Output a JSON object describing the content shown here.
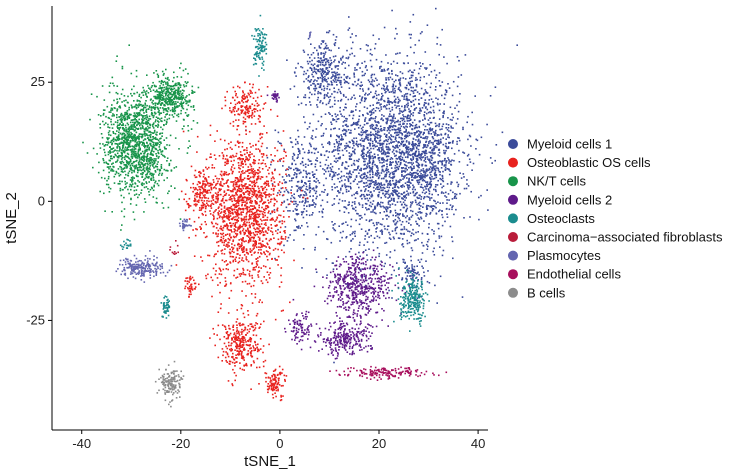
{
  "chart_data": {
    "type": "scatter",
    "title": "",
    "xlabel": "tSNE_1",
    "ylabel": "tSNE_2",
    "xlim": [
      -46,
      42
    ],
    "ylim": [
      -48,
      41
    ],
    "x_ticks": [
      -40,
      -20,
      0,
      20,
      40
    ],
    "y_ticks": [
      -25,
      0,
      25
    ],
    "grid": false,
    "legend_position": "right",
    "series": [
      {
        "name": "Myeloid cells 1",
        "color": "#3b4b9a",
        "clusters": [
          {
            "center": [
              22,
              10
            ],
            "spread": [
              13,
              19
            ],
            "count": 2600
          },
          {
            "center": [
              9,
              27
            ],
            "spread": [
              5,
              6
            ],
            "count": 300
          },
          {
            "center": [
              4,
              3
            ],
            "spread": [
              4,
              9
            ],
            "count": 250
          },
          {
            "center": [
              30,
              8
            ],
            "spread": [
              5,
              10
            ],
            "count": 300
          },
          {
            "center": [
              27,
              -15
            ],
            "spread": [
              2,
              3
            ],
            "count": 60
          }
        ]
      },
      {
        "name": "Osteoblastic OS cells",
        "color": "#e8221e",
        "clusters": [
          {
            "center": [
              -7,
              -2
            ],
            "spread": [
              7,
              14
            ],
            "count": 1500
          },
          {
            "center": [
              -7,
              20
            ],
            "spread": [
              3,
              4
            ],
            "count": 150
          },
          {
            "center": [
              -16,
              2
            ],
            "spread": [
              2.5,
              4
            ],
            "count": 150
          },
          {
            "center": [
              -8,
              -30
            ],
            "spread": [
              4,
              5
            ],
            "count": 300
          },
          {
            "center": [
              -1,
              -38
            ],
            "spread": [
              2,
              3
            ],
            "count": 100
          },
          {
            "center": [
              -18,
              -18
            ],
            "spread": [
              1,
              2
            ],
            "count": 40
          }
        ]
      },
      {
        "name": "NK/T cells",
        "color": "#18944a",
        "clusters": [
          {
            "center": [
              -29,
              12
            ],
            "spread": [
              6,
              10
            ],
            "count": 1300
          },
          {
            "center": [
              -22,
              22
            ],
            "spread": [
              4,
              4
            ],
            "count": 400
          }
        ]
      },
      {
        "name": "Myeloid cells 2",
        "color": "#5e1a8a",
        "clusters": [
          {
            "center": [
              16,
              -18
            ],
            "spread": [
              6,
              6
            ],
            "count": 500
          },
          {
            "center": [
              13,
              -29
            ],
            "spread": [
              5,
              3
            ],
            "count": 250
          },
          {
            "center": [
              4,
              -27
            ],
            "spread": [
              2,
              3
            ],
            "count": 80
          },
          {
            "center": [
              -1,
              22
            ],
            "spread": [
              1,
              1
            ],
            "count": 30
          }
        ]
      },
      {
        "name": "Osteoclasts",
        "color": "#1b8c8e",
        "clusters": [
          {
            "center": [
              27,
              -21
            ],
            "spread": [
              2.5,
              4
            ],
            "count": 250
          },
          {
            "center": [
              -4,
              33
            ],
            "spread": [
              1.2,
              4
            ],
            "count": 100
          },
          {
            "center": [
              -23,
              -22
            ],
            "spread": [
              1,
              2
            ],
            "count": 50
          },
          {
            "center": [
              -31,
              -9
            ],
            "spread": [
              1,
              1
            ],
            "count": 20
          }
        ]
      },
      {
        "name": "Carcinoma−associated fibroblasts",
        "color": "#b91c3a",
        "clusters": [
          {
            "center": [
              -21,
              -10
            ],
            "spread": [
              1,
              1
            ],
            "count": 10
          }
        ]
      },
      {
        "name": "Plasmocytes",
        "color": "#6466b0",
        "clusters": [
          {
            "center": [
              -28,
              -14
            ],
            "spread": [
              4,
              2
            ],
            "count": 200
          },
          {
            "center": [
              -19,
              -5
            ],
            "spread": [
              1,
              1
            ],
            "count": 30
          },
          {
            "center": [
              6,
              35
            ],
            "spread": [
              0.5,
              0.5
            ],
            "count": 6
          }
        ]
      },
      {
        "name": "Endothelial cells",
        "color": "#a80f5d",
        "clusters": [
          {
            "center": [
              21,
              -36
            ],
            "spread": [
              8,
              1
            ],
            "count": 160
          }
        ]
      },
      {
        "name": "B cells",
        "color": "#8c8c8c",
        "clusters": [
          {
            "center": [
              -22,
              -38
            ],
            "spread": [
              2,
              3
            ],
            "count": 150
          }
        ]
      }
    ]
  }
}
